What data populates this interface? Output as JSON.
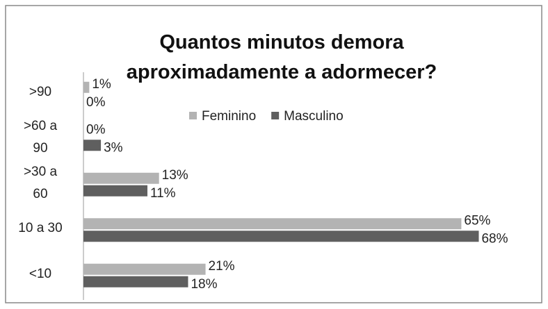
{
  "chart_data": {
    "type": "hbar",
    "title": "Quantos minutos demora aproximadamente a adormecer?",
    "categories": [
      ">90",
      ">60 a 90",
      ">30 a 60",
      "10 a 30",
      "<10"
    ],
    "series": [
      {
        "name": "Feminino",
        "color": "#b3b3b3",
        "values": [
          1,
          0,
          13,
          65,
          21
        ],
        "value_labels": [
          "1%",
          "0%",
          "13%",
          "65%",
          "21%"
        ]
      },
      {
        "name": "Masculino",
        "color": "#5f5f5f",
        "values": [
          0,
          3,
          11,
          68,
          18
        ],
        "value_labels": [
          "0%",
          "3%",
          "11%",
          "68%",
          "18%"
        ]
      }
    ],
    "legend": "top"
  }
}
